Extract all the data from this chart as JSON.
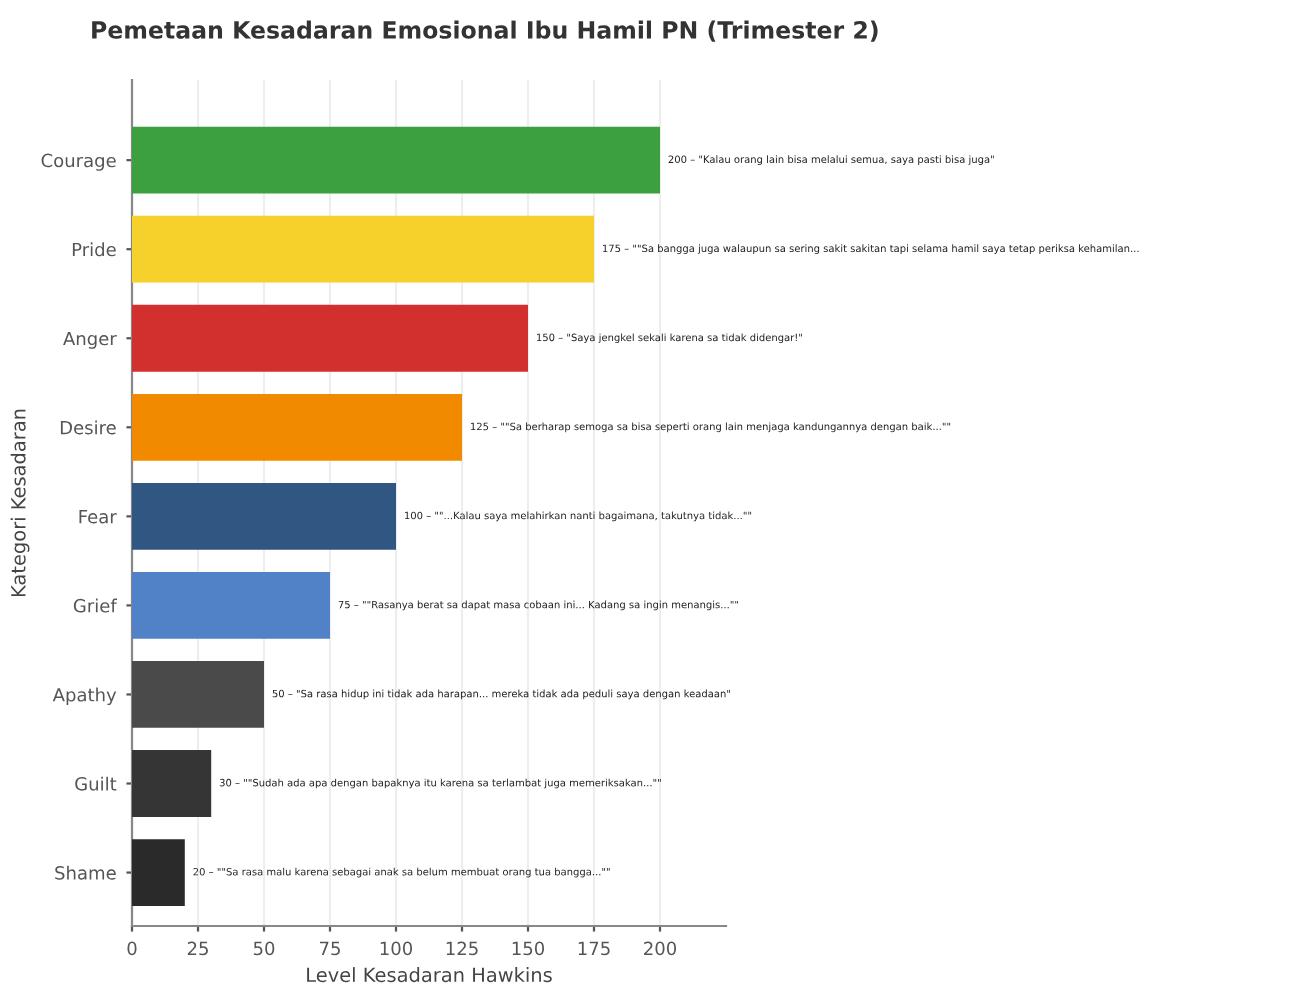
{
  "chart_data": {
    "type": "bar",
    "orientation": "horizontal",
    "title": "Pemetaan Kesadaran Emosional Ibu Hamil PN (Trimester 2)",
    "xlabel": "Level Kesadaran Hawkins",
    "ylabel": "Kategori Kesadaran",
    "categories": [
      "Courage",
      "Pride",
      "Anger",
      "Desire",
      "Fear",
      "Grief",
      "Apathy",
      "Guilt",
      "Shame"
    ],
    "values": [
      200,
      175,
      150,
      125,
      100,
      75,
      50,
      30,
      20
    ],
    "colors": [
      "#3c9f40",
      "#f6d02b",
      "#d2302f",
      "#f28a00",
      "#305682",
      "#5181c6",
      "#4a4a4a",
      "#353535",
      "#2a2a2a"
    ],
    "value_labels": [
      "200 – \"Kalau orang lain bisa melalui semua, saya pasti bisa juga\"",
      "175 – \"\"Sa bangga juga walaupun sa sering sakit sakitan tapi selama hamil saya tetap periksa kehamilan...",
      "150 – \"Saya jengkel sekali karena sa tidak didengar!\"",
      "125 – \"\"Sa berharap semoga sa bisa seperti orang lain menjaga kandungannya dengan baik...\"\"",
      "100 – \"\"...Kalau saya melahirkan nanti bagaimana, takutnya tidak...\"\"",
      "75 – \"\"Rasanya berat sa dapat masa cobaan ini... Kadang sa ingin menangis...\"\"",
      "50 – \"Sa rasa hidup ini tidak ada harapan... mereka tidak ada peduli saya dengan keadaan\"",
      "30 – \"\"Sudah ada apa dengan bapaknya itu karena sa terlambat juga memeriksakan...\"\"",
      "20 – \"\"Sa rasa malu karena sebagai anak sa belum membuat orang tua bangga...\"\""
    ],
    "xlim": [
      0,
      225
    ],
    "xticks": [
      0,
      25,
      50,
      75,
      100,
      125,
      150,
      175,
      200
    ],
    "grid": "x"
  }
}
